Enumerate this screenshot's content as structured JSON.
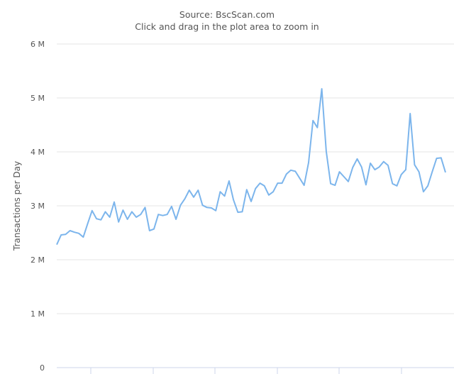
{
  "subtitle": "Source: BscScan.com",
  "hint": "Click and drag in the plot area to zoom in",
  "chart_data": {
    "type": "line",
    "title": "",
    "ylabel": "Transactions per Day",
    "xlabel": "",
    "ylim": [
      0,
      6000000
    ],
    "yticks": [
      "0",
      "1 M",
      "2 M",
      "3 M",
      "4 M",
      "5 M",
      "6 M"
    ],
    "grid": true,
    "color": "#7cb5ec",
    "series": [
      {
        "values": [
          2.28,
          2.46,
          2.47,
          2.54,
          2.51,
          2.49,
          2.42,
          2.67,
          2.91,
          2.76,
          2.74,
          2.89,
          2.79,
          3.07,
          2.7,
          2.92,
          2.75,
          2.89,
          2.79,
          2.84,
          2.97,
          2.54,
          2.57,
          2.84,
          2.82,
          2.84,
          2.99,
          2.75,
          3.01,
          3.13,
          3.29,
          3.16,
          3.29,
          3.01,
          2.97,
          2.96,
          2.91,
          3.26,
          3.18,
          3.46,
          3.11,
          2.88,
          2.89,
          3.3,
          3.08,
          3.32,
          3.42,
          3.37,
          3.2,
          3.26,
          3.42,
          3.42,
          3.59,
          3.66,
          3.64,
          3.51,
          3.38,
          3.8,
          4.58,
          4.45,
          5.17,
          4.01,
          3.41,
          3.38,
          3.63,
          3.54,
          3.45,
          3.71,
          3.87,
          3.72,
          3.39,
          3.79,
          3.67,
          3.72,
          3.82,
          3.75,
          3.41,
          3.37,
          3.58,
          3.67,
          4.71,
          3.76,
          3.63,
          3.26,
          3.37,
          3.63,
          3.88,
          3.89,
          3.62
        ],
        "unit": "millions"
      }
    ]
  }
}
